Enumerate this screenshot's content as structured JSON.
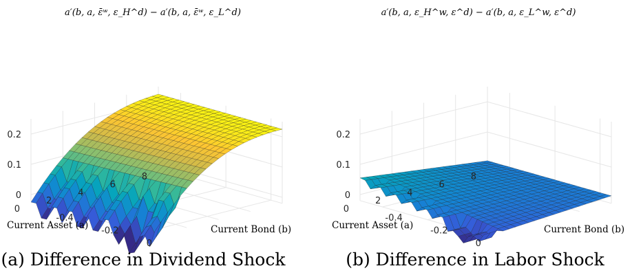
{
  "chart_data": [
    {
      "type": "surface",
      "caption": "(a) Difference in Dividend Shock",
      "title": "a′(b, a, ε̄ʷ, ε_H^d) − a′(b, a, ε̄ʷ, ε_L^d)",
      "xlabel": "Current Bond (b)",
      "ylabel": "Current Asset (a)",
      "zlabel": "",
      "x_ticks": [
        "-0.4",
        "-0.2",
        "0"
      ],
      "y_ticks": [
        "0",
        "2",
        "4",
        "6",
        "8"
      ],
      "z_ticks": [
        "0",
        "0.1",
        "0.2"
      ],
      "xlim": [
        -0.5,
        0.05
      ],
      "ylim": [
        0,
        8
      ],
      "zlim": [
        -0.02,
        0.25
      ],
      "colormap": "parula",
      "grid": true,
      "surface_summary": {
        "peak_value": 0.22,
        "peak_location": "high asset (a = 8), low bond",
        "min_value": -0.06,
        "min_location": "low asset (a near 0), bond near 0",
        "shape": "decreasing from about 0.22 at high asset to about 0 at low asset, jagged near a = 0"
      }
    },
    {
      "type": "surface",
      "caption": "(b) Difference in Labor Shock",
      "title": "a′(b, a, ε_H^w, ε^d) − a′(b, a, ε_L^w, ε^d)",
      "xlabel": "Current Bond (b)",
      "ylabel": "Current Asset (a)",
      "zlabel": "",
      "x_ticks": [
        "-0.4",
        "-0.2",
        "0"
      ],
      "y_ticks": [
        "0",
        "2",
        "4",
        "6",
        "8"
      ],
      "z_ticks": [
        "0",
        "0.1",
        "0.2"
      ],
      "xlim": [
        -0.5,
        0.05
      ],
      "ylim": [
        0,
        8
      ],
      "zlim": [
        -0.02,
        0.25
      ],
      "colormap": "parula",
      "grid": true,
      "surface_summary": {
        "peak_value": 0.05,
        "peak_location": "low asset, low bond corner",
        "min_value": -0.06,
        "min_location": "low asset (a near 0), bond near 0",
        "shape": "nearly flat plane close to 0 with small jagged dip near a = 0"
      }
    }
  ],
  "colors": {
    "text": "#262626",
    "grid": "#e6e6e6",
    "axis": "#262626"
  }
}
